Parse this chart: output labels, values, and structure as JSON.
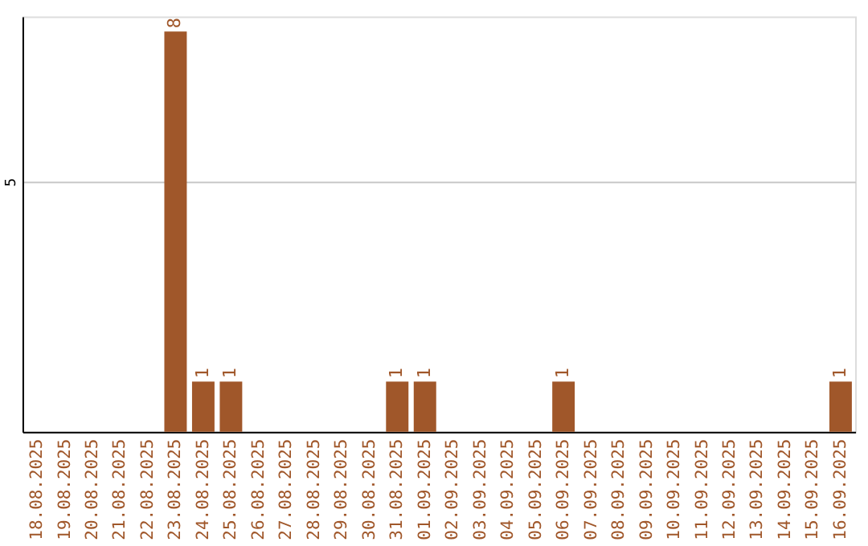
{
  "chart_data": {
    "type": "bar",
    "categories": [
      "18.08.2025",
      "19.08.2025",
      "20.08.2025",
      "21.08.2025",
      "22.08.2025",
      "23.08.2025",
      "24.08.2025",
      "25.08.2025",
      "26.08.2025",
      "27.08.2025",
      "28.08.2025",
      "29.08.2025",
      "30.08.2025",
      "31.08.2025",
      "01.09.2025",
      "02.09.2025",
      "03.09.2025",
      "04.09.2025",
      "05.09.2025",
      "06.09.2025",
      "07.09.2025",
      "08.09.2025",
      "09.09.2025",
      "10.09.2025",
      "11.09.2025",
      "12.09.2025",
      "13.09.2025",
      "14.09.2025",
      "15.09.2025",
      "16.09.2025"
    ],
    "values": [
      0,
      0,
      0,
      0,
      0,
      8,
      1,
      1,
      0,
      0,
      0,
      0,
      0,
      1,
      1,
      0,
      0,
      0,
      0,
      1,
      0,
      0,
      0,
      0,
      0,
      0,
      0,
      0,
      0,
      1
    ],
    "value_labels": [
      null,
      null,
      null,
      null,
      null,
      "8",
      "1",
      "1",
      null,
      null,
      null,
      null,
      null,
      "1",
      "1",
      null,
      null,
      null,
      null,
      "1",
      null,
      null,
      null,
      null,
      null,
      null,
      null,
      null,
      null,
      "1"
    ],
    "color": "#a0572a",
    "ylim": [
      0,
      8.3
    ],
    "yticks": [
      5
    ],
    "grid": "y"
  }
}
